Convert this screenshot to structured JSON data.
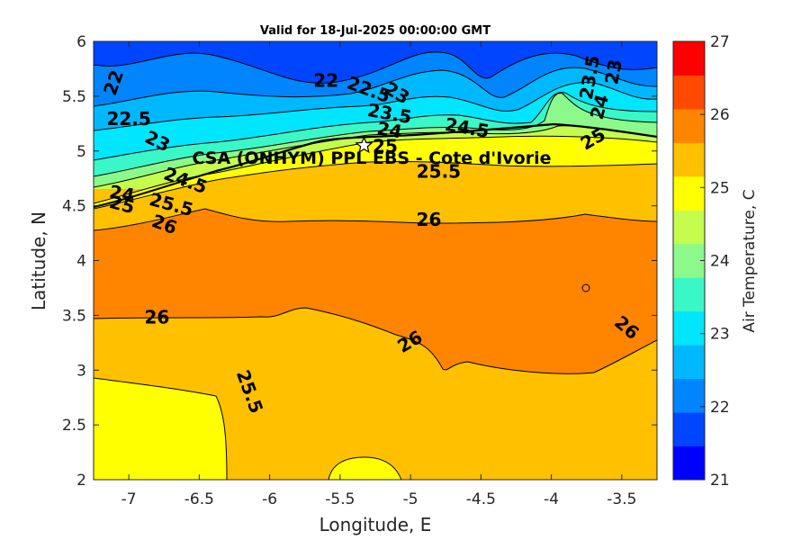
{
  "chart_data": {
    "type": "heatmap",
    "title": "Valid for 18-Jul-2025 00:00:00 GMT",
    "xlabel": "Longitude, E",
    "ylabel": "Latitude, N",
    "xlim": [
      -7.25,
      -3.25
    ],
    "ylim": [
      2,
      6
    ],
    "xticks": [
      -7,
      -6.5,
      -6,
      -5.5,
      -5,
      -4.5,
      -4,
      -3.5
    ],
    "yticks": [
      2,
      2.5,
      3,
      3.5,
      4,
      4.5,
      5,
      5.5,
      6
    ],
    "colorbar": {
      "label": "Air Temperature, C",
      "range": [
        21,
        27
      ],
      "step": 0.5,
      "ticks": [
        21,
        22,
        23,
        24,
        25,
        26,
        27
      ],
      "colors": [
        "#0000ff",
        "#0045ff",
        "#0085ff",
        "#00b8ff",
        "#00e6ff",
        "#3af7c8",
        "#8bfa8a",
        "#c4fd4e",
        "#ffff00",
        "#ffc000",
        "#ff8500",
        "#ff4a00",
        "#ff0000"
      ]
    },
    "site": {
      "label": "CSA (ONHYM) PPL EBS - Cote d'Ivorie",
      "lon": -5.33,
      "lat": 5.05
    },
    "contour_labels": [
      {
        "text": "22",
        "lon": -7.1,
        "lat": 5.62,
        "angle": 70
      },
      {
        "text": "22.5",
        "lon": -7.0,
        "lat": 5.28,
        "angle": 0
      },
      {
        "text": "23",
        "lon": -6.8,
        "lat": 5.08,
        "angle": -25
      },
      {
        "text": "24",
        "lon": -7.05,
        "lat": 4.6,
        "angle": -10
      },
      {
        "text": "24.5",
        "lon": -6.6,
        "lat": 4.72,
        "angle": -20
      },
      {
        "text": "25",
        "lon": -7.05,
        "lat": 4.5,
        "angle": -15
      },
      {
        "text": "25.5",
        "lon": -6.7,
        "lat": 4.5,
        "angle": -15
      },
      {
        "text": "26",
        "lon": -6.75,
        "lat": 4.32,
        "angle": -20
      },
      {
        "text": "22",
        "lon": -5.6,
        "lat": 5.63,
        "angle": 0
      },
      {
        "text": "22.5",
        "lon": -5.3,
        "lat": 5.55,
        "angle": -20
      },
      {
        "text": "23",
        "lon": -5.1,
        "lat": 5.52,
        "angle": -30
      },
      {
        "text": "23.5",
        "lon": -5.15,
        "lat": 5.33,
        "angle": -10
      },
      {
        "text": "24",
        "lon": -5.15,
        "lat": 5.18,
        "angle": -10
      },
      {
        "text": "24.5",
        "lon": -4.6,
        "lat": 5.2,
        "angle": -10
      },
      {
        "text": "25",
        "lon": -5.18,
        "lat": 5.03,
        "angle": 0
      },
      {
        "text": "25.5",
        "lon": -4.8,
        "lat": 4.8,
        "angle": 0
      },
      {
        "text": "23",
        "lon": -3.55,
        "lat": 5.72,
        "angle": 80
      },
      {
        "text": "23.5",
        "lon": -3.72,
        "lat": 5.67,
        "angle": 80
      },
      {
        "text": "24",
        "lon": -3.65,
        "lat": 5.4,
        "angle": 75
      },
      {
        "text": "25",
        "lon": -3.7,
        "lat": 5.1,
        "angle": 30
      },
      {
        "text": "26",
        "lon": -4.87,
        "lat": 4.36,
        "angle": 0
      },
      {
        "text": "26",
        "lon": -6.8,
        "lat": 3.47,
        "angle": 0
      },
      {
        "text": "26",
        "lon": -5.0,
        "lat": 3.25,
        "angle": 30
      },
      {
        "text": "26",
        "lon": -3.47,
        "lat": 3.38,
        "angle": -40
      },
      {
        "text": "25.5",
        "lon": -6.15,
        "lat": 2.8,
        "angle": -70
      }
    ]
  }
}
